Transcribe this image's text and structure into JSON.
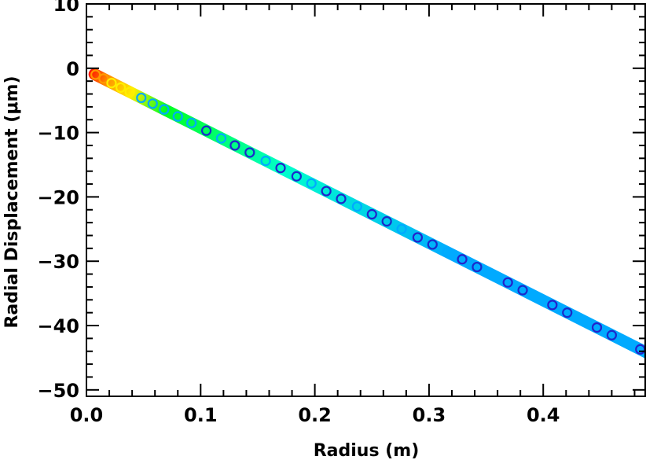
{
  "chart_data": {
    "type": "scatter",
    "title": "",
    "xlabel": "Radius (m)",
    "ylabel": "Radial Displacement (μm)",
    "xlim": [
      0.0,
      0.49
    ],
    "ylim": [
      -51,
      10
    ],
    "xticks": [
      0.0,
      0.1,
      0.2,
      0.3,
      0.4
    ],
    "xtick_labels": [
      "0.0",
      "0.1",
      "0.2",
      "0.3",
      "0.4"
    ],
    "yticks": [
      10,
      0,
      -10,
      -20,
      -30,
      -40,
      -50
    ],
    "ytick_labels": [
      "10",
      "0",
      "−10",
      "−20",
      "−30",
      "−40",
      "−50"
    ],
    "grid": false,
    "legend": "none",
    "marker": "open-circle",
    "trend": {
      "slope": -89.5,
      "intercept": -0.3
    },
    "series": [
      {
        "x": [
          0.008,
          0.015,
          0.022,
          0.03,
          0.038,
          0.048,
          0.058,
          0.068,
          0.08,
          0.092,
          0.105,
          0.118,
          0.13,
          0.143,
          0.157,
          0.17,
          0.184,
          0.197,
          0.21,
          0.223,
          0.237,
          0.25,
          0.263,
          0.276,
          0.29,
          0.303,
          0.316,
          0.329,
          0.342,
          0.356,
          0.369,
          0.382,
          0.395,
          0.408,
          0.421,
          0.434,
          0.447,
          0.46,
          0.472,
          0.485
        ],
        "y": [
          -1.0,
          -1.6,
          -2.3,
          -3.0,
          -3.7,
          -4.6,
          -5.5,
          -6.4,
          -7.5,
          -8.5,
          -9.7,
          -10.9,
          -12.0,
          -13.1,
          -14.4,
          -15.5,
          -16.8,
          -17.9,
          -19.1,
          -20.3,
          -21.5,
          -22.7,
          -23.8,
          -25.0,
          -26.3,
          -27.4,
          -28.6,
          -29.7,
          -30.9,
          -32.2,
          -33.3,
          -34.5,
          -35.7,
          -36.8,
          -38.0,
          -39.1,
          -40.3,
          -41.5,
          -42.6,
          -43.7
        ]
      }
    ],
    "colors": {
      "gradient": [
        "#ff0000",
        "#ff9900",
        "#ffee00",
        "#00ff22",
        "#00ffcc",
        "#00aaff",
        "#2222cc"
      ],
      "marker_outline": "#1a2acb",
      "axis": "#000000"
    }
  }
}
